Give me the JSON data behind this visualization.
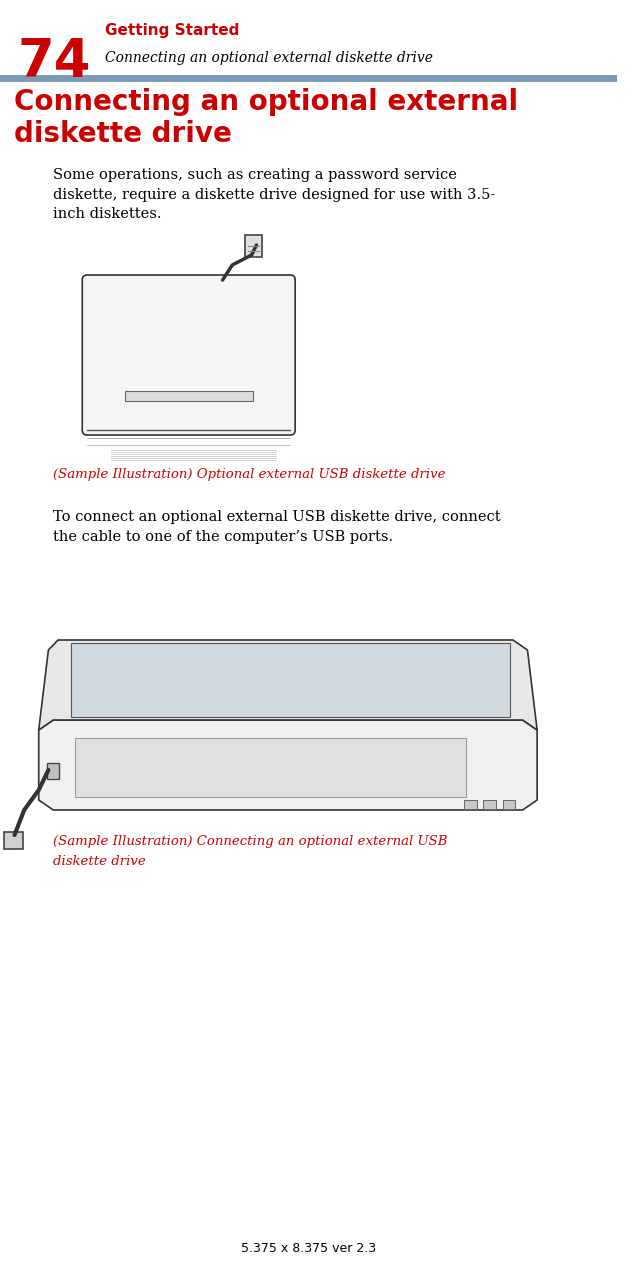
{
  "bg_color": "#ffffff",
  "page_num": "74",
  "page_num_color": "#cc0000",
  "header_chapter": "Getting Started",
  "header_chapter_color": "#cc0000",
  "header_sub": "Connecting an optional external diskette drive",
  "header_sub_color": "#000000",
  "divider_color": "#7a9ab5",
  "section_title": "Connecting an optional external diskette drive",
  "section_title_color": "#cc0000",
  "body_text1": "Some operations, such as creating a password service\ndiskette, require a diskette drive designed for use with 3.5-\ninch diskettes.",
  "body_text1_color": "#000000",
  "caption1": "(Sample Illustration) Optional external USB diskette drive",
  "caption1_color": "#cc0000",
  "body_text2": "To connect an optional external USB diskette drive, connect\nthe cable to one of the computer’s USB ports.",
  "body_text2_color": "#000000",
  "caption2_line1": "(Sample Illustration) Connecting an optional external USB",
  "caption2_line2": "diskette drive",
  "caption2_color": "#cc0000",
  "footer_text": "5.375 x 8.375 ver 2.3",
  "footer_color": "#000000"
}
